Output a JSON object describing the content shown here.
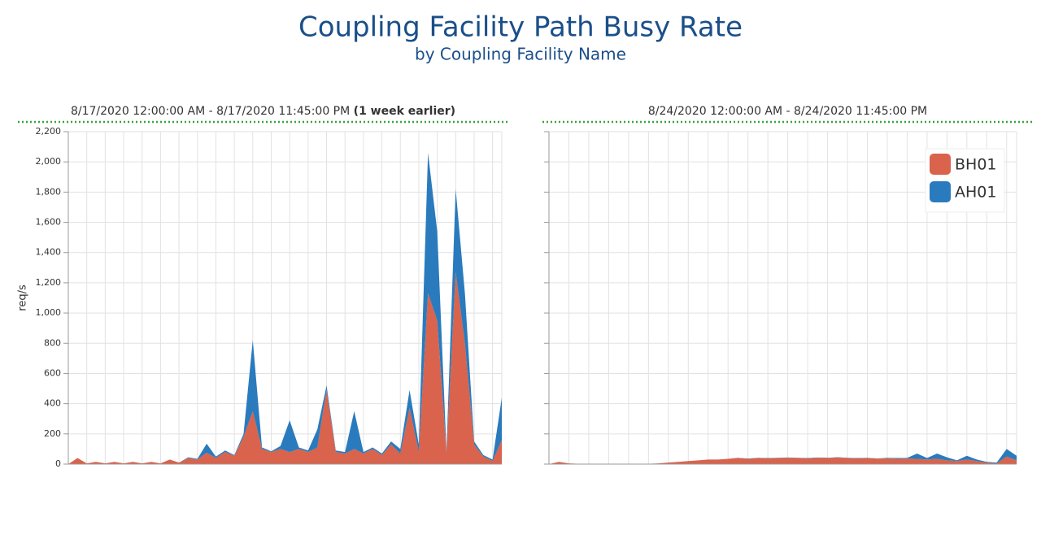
{
  "header": {
    "title": "Coupling Facility Path Busy Rate",
    "subtitle": "by Coupling Facility Name"
  },
  "chart_data": [
    {
      "type": "stacked_area",
      "subtitle": "8/17/2020 12:00:00 AM - 8/17/2020 11:45:00 PM",
      "note": "(1 week earlier)",
      "y_label": "req/s",
      "ylim": [
        0,
        2200
      ],
      "yticks": [
        0,
        200,
        400,
        600,
        800,
        {
          "value": 1000,
          "label": "1,000"
        },
        {
          "value": 1200,
          "label": "1,200"
        },
        {
          "value": 1400,
          "label": "1,400"
        },
        {
          "value": 1600,
          "label": "1,600"
        },
        {
          "value": 1800,
          "label": "1,800"
        },
        {
          "value": 2000,
          "label": "2,000"
        },
        {
          "value": 2200,
          "label": "2,200"
        }
      ],
      "grid": true,
      "series": [
        {
          "name": "BH01",
          "color": "#d9634c",
          "values": [
            0,
            40,
            5,
            15,
            5,
            15,
            5,
            15,
            5,
            15,
            5,
            30,
            10,
            40,
            30,
            75,
            40,
            80,
            55,
            180,
            350,
            100,
            80,
            100,
            80,
            100,
            80,
            110,
            490,
            80,
            70,
            100,
            70,
            100,
            60,
            130,
            70,
            370,
            80,
            1130,
            950,
            80,
            1270,
            800,
            130,
            50,
            20,
            160
          ]
        },
        {
          "name": "AH01",
          "color": "#2a7bbd",
          "values": [
            0,
            0,
            0,
            0,
            0,
            0,
            0,
            0,
            0,
            0,
            0,
            0,
            0,
            5,
            5,
            60,
            10,
            10,
            5,
            20,
            470,
            10,
            5,
            20,
            210,
            10,
            10,
            120,
            30,
            10,
            10,
            250,
            10,
            10,
            10,
            20,
            30,
            120,
            50,
            930,
            590,
            10,
            550,
            330,
            20,
            10,
            10,
            280
          ]
        }
      ]
    },
    {
      "type": "stacked_area",
      "subtitle": "8/24/2020 12:00:00 AM - 8/24/2020 11:45:00 PM",
      "ylim": [
        0,
        2200
      ],
      "yticks": [
        0,
        200,
        400,
        600,
        800,
        1000,
        1200,
        1400,
        1600,
        1800,
        2000,
        2200
      ],
      "grid": true,
      "legend": "upper right",
      "series": [
        {
          "name": "BH01",
          "color": "#d9634c",
          "values": [
            0,
            15,
            5,
            2,
            2,
            2,
            2,
            2,
            2,
            2,
            2,
            5,
            10,
            15,
            20,
            25,
            30,
            30,
            35,
            40,
            35,
            40,
            38,
            40,
            42,
            40,
            38,
            42,
            40,
            44,
            40,
            38,
            40,
            36,
            38,
            35,
            36,
            35,
            30,
            35,
            25,
            20,
            30,
            20,
            10,
            5,
            50,
            25
          ]
        },
        {
          "name": "AH01",
          "color": "#2a7bbd",
          "values": [
            0,
            0,
            0,
            0,
            0,
            0,
            0,
            0,
            0,
            0,
            0,
            0,
            0,
            0,
            0,
            0,
            0,
            0,
            0,
            2,
            2,
            2,
            2,
            2,
            2,
            2,
            2,
            2,
            2,
            2,
            2,
            2,
            2,
            2,
            3,
            5,
            5,
            35,
            10,
            35,
            20,
            5,
            25,
            10,
            5,
            5,
            50,
            30
          ]
        }
      ]
    }
  ]
}
